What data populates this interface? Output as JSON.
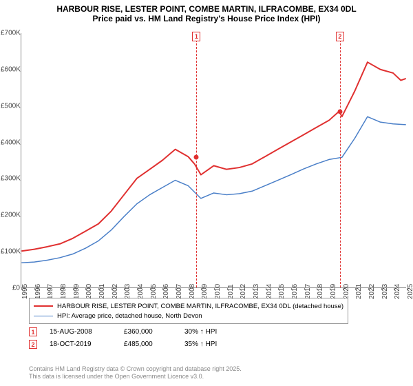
{
  "title": {
    "line1": "HARBOUR RISE, LESTER POINT, COMBE MARTIN, ILFRACOMBE, EX34 0DL",
    "line2": "Price paid vs. HM Land Registry's House Price Index (HPI)"
  },
  "chart": {
    "type": "line",
    "background_color": "#ffffff",
    "grid_color": "#cccccc",
    "axis_color": "#888888",
    "x": {
      "min": 1995,
      "max": 2025,
      "ticks": [
        1995,
        1996,
        1997,
        1998,
        1999,
        2000,
        2001,
        2002,
        2003,
        2004,
        2005,
        2006,
        2007,
        2008,
        2009,
        2010,
        2011,
        2012,
        2013,
        2014,
        2015,
        2016,
        2017,
        2018,
        2019,
        2020,
        2021,
        2022,
        2023,
        2024,
        2025
      ]
    },
    "y": {
      "min": 0,
      "max": 700000,
      "ticks": [
        0,
        100000,
        200000,
        300000,
        400000,
        500000,
        600000,
        700000
      ],
      "tick_labels": [
        "£0",
        "£100K",
        "£200K",
        "£300K",
        "£400K",
        "£500K",
        "£600K",
        "£700K"
      ]
    },
    "series": [
      {
        "id": "price_paid",
        "label": "HARBOUR RISE, LESTER POINT, COMBE MARTIN, ILFRACOMBE, EX34 0DL (detached house)",
        "color": "#e03030",
        "line_width": 2,
        "points": [
          [
            1995,
            100000
          ],
          [
            1996,
            105000
          ],
          [
            1997,
            112000
          ],
          [
            1998,
            120000
          ],
          [
            1999,
            135000
          ],
          [
            2000,
            155000
          ],
          [
            2001,
            175000
          ],
          [
            2002,
            210000
          ],
          [
            2003,
            255000
          ],
          [
            2004,
            300000
          ],
          [
            2005,
            325000
          ],
          [
            2006,
            350000
          ],
          [
            2007,
            380000
          ],
          [
            2008,
            360000
          ],
          [
            2008.5,
            340000
          ],
          [
            2009,
            310000
          ],
          [
            2010,
            335000
          ],
          [
            2011,
            325000
          ],
          [
            2012,
            330000
          ],
          [
            2013,
            340000
          ],
          [
            2014,
            360000
          ],
          [
            2015,
            380000
          ],
          [
            2016,
            400000
          ],
          [
            2017,
            420000
          ],
          [
            2018,
            440000
          ],
          [
            2019,
            460000
          ],
          [
            2019.8,
            485000
          ],
          [
            2020,
            470000
          ],
          [
            2021,
            540000
          ],
          [
            2022,
            620000
          ],
          [
            2023,
            600000
          ],
          [
            2024,
            590000
          ],
          [
            2024.6,
            570000
          ],
          [
            2025,
            575000
          ]
        ]
      },
      {
        "id": "hpi",
        "label": "HPI: Average price, detached house, North Devon",
        "color": "#4a7fc8",
        "line_width": 1.5,
        "points": [
          [
            1995,
            68000
          ],
          [
            1996,
            70000
          ],
          [
            1997,
            75000
          ],
          [
            1998,
            82000
          ],
          [
            1999,
            92000
          ],
          [
            2000,
            108000
          ],
          [
            2001,
            128000
          ],
          [
            2002,
            158000
          ],
          [
            2003,
            195000
          ],
          [
            2004,
            230000
          ],
          [
            2005,
            255000
          ],
          [
            2006,
            275000
          ],
          [
            2007,
            295000
          ],
          [
            2008,
            280000
          ],
          [
            2009,
            245000
          ],
          [
            2010,
            260000
          ],
          [
            2011,
            255000
          ],
          [
            2012,
            258000
          ],
          [
            2013,
            265000
          ],
          [
            2014,
            280000
          ],
          [
            2015,
            295000
          ],
          [
            2016,
            310000
          ],
          [
            2017,
            326000
          ],
          [
            2018,
            340000
          ],
          [
            2019,
            352000
          ],
          [
            2020,
            358000
          ],
          [
            2021,
            410000
          ],
          [
            2022,
            470000
          ],
          [
            2023,
            455000
          ],
          [
            2024,
            450000
          ],
          [
            2025,
            448000
          ]
        ]
      }
    ],
    "markers": [
      {
        "id": 1,
        "label": "1",
        "x": 2008.63,
        "y": 360000,
        "color": "#e03030"
      },
      {
        "id": 2,
        "label": "2",
        "x": 2019.8,
        "y": 485000,
        "color": "#e03030"
      }
    ]
  },
  "legend": {
    "border_color": "#999999",
    "fontsize": 9.5,
    "items": [
      {
        "color": "#e03030",
        "width": 2,
        "label": "HARBOUR RISE, LESTER POINT, COMBE MARTIN, ILFRACOMBE, EX34 0DL (detached house)"
      },
      {
        "color": "#4a7fc8",
        "width": 1.5,
        "label": "HPI: Average price, detached house, North Devon"
      }
    ]
  },
  "transactions": [
    {
      "num": "1",
      "color": "#e03030",
      "date": "15-AUG-2008",
      "price": "£360,000",
      "hpi": "30% ↑ HPI"
    },
    {
      "num": "2",
      "color": "#e03030",
      "date": "18-OCT-2019",
      "price": "£485,000",
      "hpi": "35% ↑ HPI"
    }
  ],
  "footer": {
    "line1": "Contains HM Land Registry data © Crown copyright and database right 2025.",
    "line2": "This data is licensed under the Open Government Licence v3.0."
  }
}
